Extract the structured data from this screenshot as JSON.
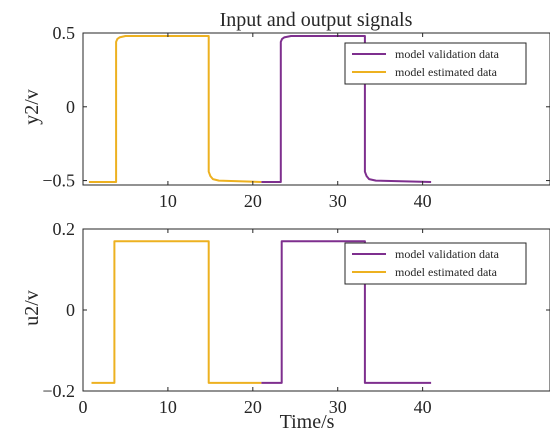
{
  "chart_data": [
    {
      "type": "line",
      "title": "Input and output signals",
      "xlabel": "",
      "ylabel": "y2/v",
      "xlim": [
        0,
        55
      ],
      "ylim": [
        -0.53,
        0.5
      ],
      "xticks": [
        "10",
        "20",
        "30",
        "40"
      ],
      "xtick_values": [
        10,
        20,
        30,
        40
      ],
      "yticks": [
        "-0.5",
        "0",
        "0.5"
      ],
      "ytick_values": [
        -0.5,
        0,
        0.5
      ],
      "grid": false,
      "legend_position": "top-right",
      "series": [
        {
          "name": "model validation data",
          "color": "#7e2f8e",
          "x": [
            21,
            23.3,
            23.3,
            23.45,
            23.7,
            24.5,
            33.2,
            33.2,
            33.4,
            33.7,
            34.5,
            41
          ],
          "y": [
            -0.51,
            -0.51,
            0.44,
            0.46,
            0.47,
            0.48,
            0.48,
            -0.44,
            -0.47,
            -0.49,
            -0.5,
            -0.51
          ]
        },
        {
          "name": "model estimated data",
          "color": "#edb120",
          "x": [
            0.7,
            3.9,
            3.9,
            4.05,
            4.3,
            5.0,
            14.8,
            14.8,
            15.0,
            15.3,
            16.0,
            21
          ],
          "y": [
            -0.51,
            -0.51,
            0.44,
            0.46,
            0.47,
            0.48,
            0.48,
            -0.44,
            -0.47,
            -0.49,
            -0.5,
            -0.51
          ]
        }
      ]
    },
    {
      "type": "line",
      "title": "",
      "xlabel": "Time/s",
      "ylabel": "u2/v",
      "xlim": [
        0,
        55
      ],
      "ylim": [
        -0.2,
        0.2
      ],
      "xticks": [
        "0",
        "10",
        "20",
        "30",
        "40"
      ],
      "xtick_values": [
        0,
        10,
        20,
        30,
        40
      ],
      "yticks": [
        "-0.2",
        "0",
        "0.2"
      ],
      "ytick_values": [
        -0.2,
        0,
        0.2
      ],
      "grid": false,
      "legend_position": "top-right",
      "series": [
        {
          "name": "model validation data",
          "color": "#7e2f8e",
          "x": [
            21,
            23.4,
            23.4,
            33.2,
            33.2,
            41
          ],
          "y": [
            -0.18,
            -0.18,
            0.17,
            0.17,
            -0.18,
            -0.18
          ]
        },
        {
          "name": "model estimated data",
          "color": "#edb120",
          "x": [
            1,
            3.7,
            3.7,
            14.8,
            14.8,
            21
          ],
          "y": [
            -0.18,
            -0.18,
            0.17,
            0.17,
            -0.18,
            -0.18
          ]
        }
      ]
    }
  ]
}
